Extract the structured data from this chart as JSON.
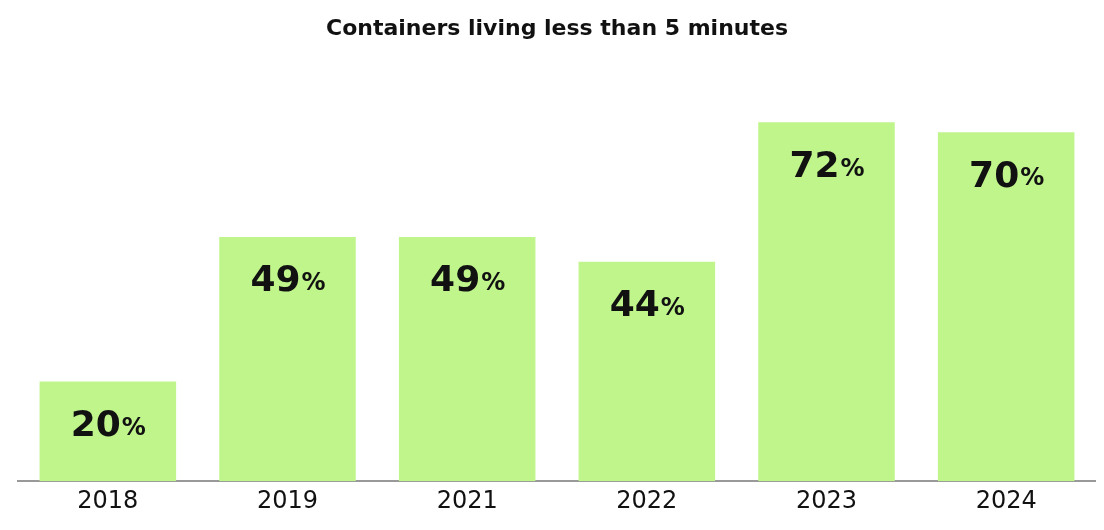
{
  "chart_data": {
    "type": "bar",
    "title": "Containers living less than 5 minutes",
    "categories": [
      "2018",
      "2019",
      "2021",
      "2022",
      "2023",
      "2024"
    ],
    "values": [
      20,
      49,
      49,
      44,
      72,
      70
    ],
    "value_labels": [
      "20%",
      "49%",
      "49%",
      "44%",
      "72%",
      "70%"
    ],
    "color": "#c0f58c",
    "grid": false,
    "legend": false
  }
}
